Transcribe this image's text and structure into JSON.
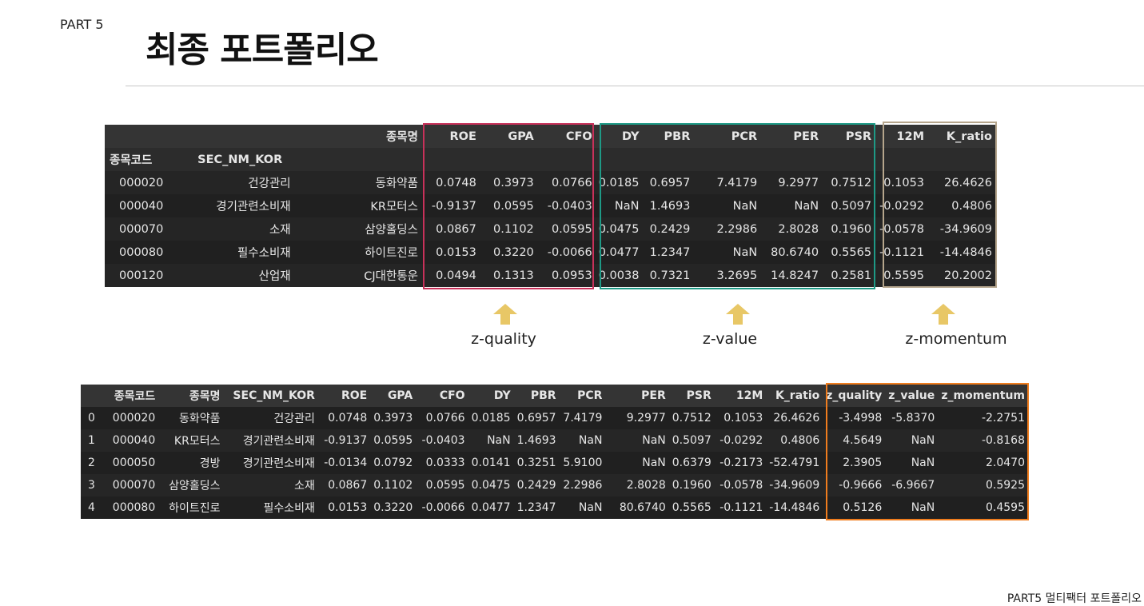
{
  "header": {
    "part": "PART 5",
    "title": "최종 포트폴리오"
  },
  "footer": "PART5 멀티팩터 포트폴리오",
  "top_table": {
    "col_index_label": "종목명",
    "columns": [
      "ROE",
      "GPA",
      "CFO",
      "DY",
      "PBR",
      "PCR",
      "PER",
      "PSR",
      "12M",
      "K_ratio"
    ],
    "index_names": [
      "종목코드",
      "SEC_NM_KOR"
    ],
    "rows": [
      {
        "code": "000020",
        "sector": "건강관리",
        "name": "동화약품",
        "values": [
          "0.0748",
          "0.3973",
          "0.0766",
          "0.0185",
          "0.6957",
          "7.4179",
          "9.2977",
          "0.7512",
          "0.1053",
          "26.4626"
        ]
      },
      {
        "code": "000040",
        "sector": "경기관련소비재",
        "name": "KR모터스",
        "values": [
          "-0.9137",
          "0.0595",
          "-0.0403",
          "NaN",
          "1.4693",
          "NaN",
          "NaN",
          "0.5097",
          "-0.0292",
          "0.4806"
        ]
      },
      {
        "code": "000070",
        "sector": "소재",
        "name": "삼양홀딩스",
        "values": [
          "0.0867",
          "0.1102",
          "0.0595",
          "0.0475",
          "0.2429",
          "2.2986",
          "2.8028",
          "0.1960",
          "-0.0578",
          "-34.9609"
        ]
      },
      {
        "code": "000080",
        "sector": "필수소비재",
        "name": "하이트진로",
        "values": [
          "0.0153",
          "0.3220",
          "-0.0066",
          "0.0477",
          "1.2347",
          "NaN",
          "80.6740",
          "0.5565",
          "-0.1121",
          "-14.4846"
        ]
      },
      {
        "code": "000120",
        "sector": "산업재",
        "name": "CJ대한통운",
        "values": [
          "0.0494",
          "0.1313",
          "0.0953",
          "0.0038",
          "0.7321",
          "3.2695",
          "14.8247",
          "0.2581",
          "0.5595",
          "20.2002"
        ]
      }
    ]
  },
  "annotations": {
    "quality": "z-quality",
    "value": "z-value",
    "momentum": "z-momentum",
    "arrow_color": "#e8c766"
  },
  "bottom_table": {
    "columns": [
      "종목코드",
      "종목명",
      "SEC_NM_KOR",
      "ROE",
      "GPA",
      "CFO",
      "DY",
      "PBR",
      "PCR",
      "PER",
      "PSR",
      "12M",
      "K_ratio",
      "z_quality",
      "z_value",
      "z_momentum"
    ],
    "rows": [
      {
        "idx": "0",
        "cells": [
          "000020",
          "동화약품",
          "건강관리",
          "0.0748",
          "0.3973",
          "0.0766",
          "0.0185",
          "0.6957",
          "7.4179",
          "9.2977",
          "0.7512",
          "0.1053",
          "26.4626",
          "-3.4998",
          "-5.8370",
          "-2.2751"
        ]
      },
      {
        "idx": "1",
        "cells": [
          "000040",
          "KR모터스",
          "경기관련소비재",
          "-0.9137",
          "0.0595",
          "-0.0403",
          "NaN",
          "1.4693",
          "NaN",
          "NaN",
          "0.5097",
          "-0.0292",
          "0.4806",
          "4.5649",
          "NaN",
          "-0.8168"
        ]
      },
      {
        "idx": "2",
        "cells": [
          "000050",
          "경방",
          "경기관련소비재",
          "-0.0134",
          "0.0792",
          "0.0333",
          "0.0141",
          "0.3251",
          "5.9100",
          "NaN",
          "0.6379",
          "-0.2173",
          "-52.4791",
          "2.3905",
          "NaN",
          "2.0470"
        ]
      },
      {
        "idx": "3",
        "cells": [
          "000070",
          "삼양홀딩스",
          "소재",
          "0.0867",
          "0.1102",
          "0.0595",
          "0.0475",
          "0.2429",
          "2.2986",
          "2.8028",
          "0.1960",
          "-0.0578",
          "-34.9609",
          "-0.9666",
          "-6.9667",
          "0.5925"
        ]
      },
      {
        "idx": "4",
        "cells": [
          "000080",
          "하이트진로",
          "필수소비재",
          "0.0153",
          "0.3220",
          "-0.0066",
          "0.0477",
          "1.2347",
          "NaN",
          "80.6740",
          "0.5565",
          "-0.1121",
          "-14.4846",
          "0.5126",
          "NaN",
          "0.4595"
        ]
      }
    ]
  },
  "colors": {
    "quality_box": "#c8315a",
    "value_box": "#1e9a86",
    "momentum_box": "#b5a58c",
    "z_box": "#f07d1e"
  }
}
